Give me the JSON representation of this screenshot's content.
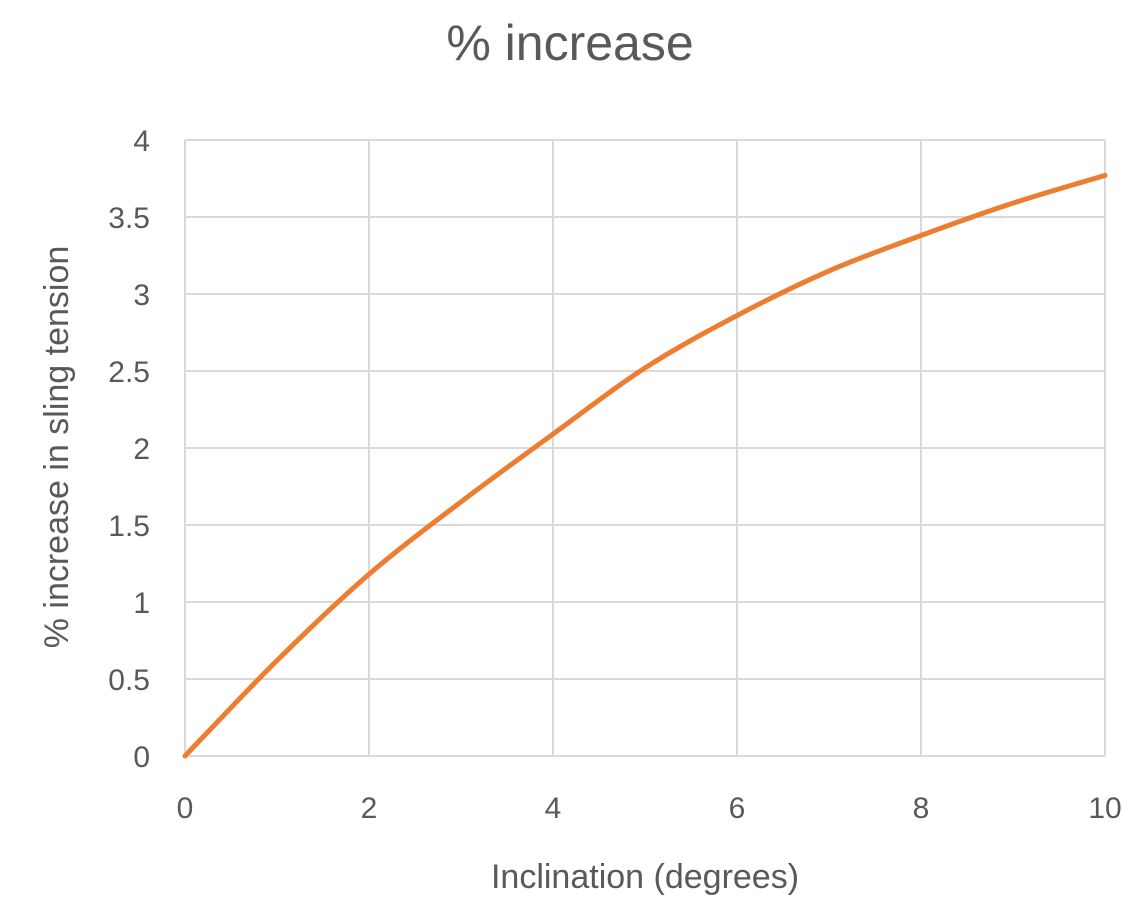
{
  "chart_data": {
    "type": "line",
    "title": "% increase",
    "xlabel": "Inclination (degrees)",
    "ylabel": "% increase in sling tension",
    "xlim": [
      0,
      10
    ],
    "ylim": [
      0,
      4
    ],
    "xticks": [
      "0",
      "2",
      "4",
      "6",
      "8",
      "10"
    ],
    "yticks": [
      "0",
      "0.5",
      "1",
      "1.5",
      "2",
      "2.5",
      "3",
      "3.5",
      "4"
    ],
    "grid": true,
    "legend": "none",
    "series": [
      {
        "color": "#ed7d31",
        "x": [
          0,
          1,
          2,
          3,
          4,
          5,
          6,
          7,
          8,
          9,
          10
        ],
        "y": [
          0,
          0.62,
          1.18,
          1.65,
          2.09,
          2.52,
          2.86,
          3.15,
          3.38,
          3.59,
          3.77
        ]
      }
    ]
  }
}
